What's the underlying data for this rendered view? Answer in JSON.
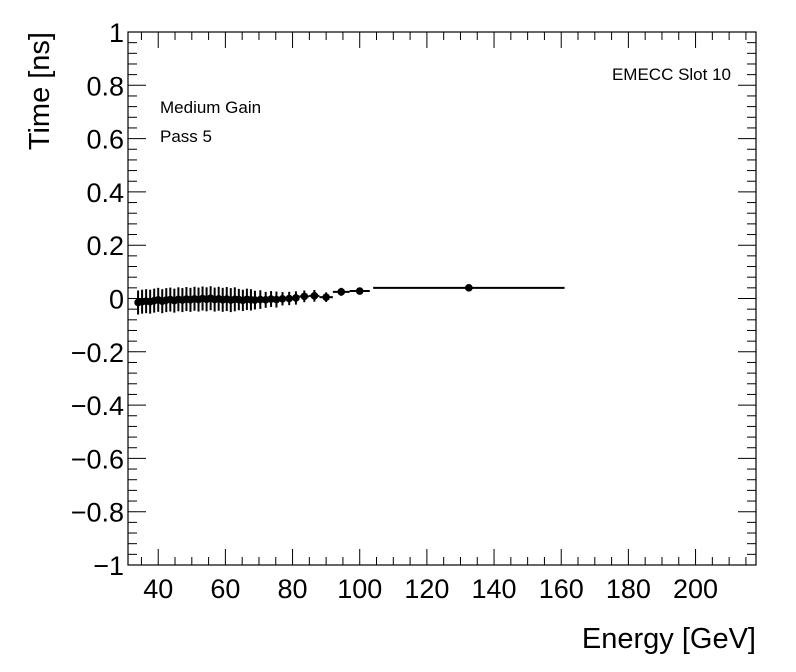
{
  "chart_data": {
    "type": "scatter",
    "xlabel": "Energy [GeV]",
    "ylabel": "Time [ns]",
    "xlim": [
      31,
      218
    ],
    "ylim": [
      -1,
      1
    ],
    "xticks": [
      40,
      60,
      80,
      100,
      120,
      140,
      160,
      180,
      200
    ],
    "xtick_labels": [
      "40",
      "60",
      "80",
      "100",
      "120",
      "140",
      "160",
      "180",
      "200"
    ],
    "yticks": [
      -1,
      -0.8,
      -0.6,
      -0.4,
      -0.2,
      0,
      0.2,
      0.4,
      0.6,
      0.8,
      1
    ],
    "ytick_labels": [
      "−1",
      "−0.8",
      "−0.6",
      "−0.4",
      "−0.2",
      "0",
      "0.2",
      "0.4",
      "0.6",
      "0.8",
      "1"
    ],
    "grid": false,
    "annotations": {
      "top_right": "EMECC Slot 10",
      "line1": "Medium Gain",
      "line2": "Pass 5"
    },
    "points": [
      {
        "x": 34.0,
        "y": -0.015,
        "xerr": 0.6,
        "yerr": 0.045
      },
      {
        "x": 35.2,
        "y": -0.012,
        "xerr": 0.6,
        "yerr": 0.045
      },
      {
        "x": 36.4,
        "y": -0.01,
        "xerr": 0.6,
        "yerr": 0.045
      },
      {
        "x": 37.6,
        "y": -0.012,
        "xerr": 0.6,
        "yerr": 0.045
      },
      {
        "x": 38.8,
        "y": -0.008,
        "xerr": 0.6,
        "yerr": 0.045
      },
      {
        "x": 40.0,
        "y": -0.005,
        "xerr": 0.6,
        "yerr": 0.045
      },
      {
        "x": 41.2,
        "y": -0.01,
        "xerr": 0.6,
        "yerr": 0.045
      },
      {
        "x": 42.4,
        "y": -0.006,
        "xerr": 0.6,
        "yerr": 0.045
      },
      {
        "x": 43.6,
        "y": -0.004,
        "xerr": 0.6,
        "yerr": 0.045
      },
      {
        "x": 44.8,
        "y": -0.008,
        "xerr": 0.6,
        "yerr": 0.045
      },
      {
        "x": 46.0,
        "y": -0.003,
        "xerr": 0.6,
        "yerr": 0.045
      },
      {
        "x": 47.2,
        "y": -0.006,
        "xerr": 0.6,
        "yerr": 0.045
      },
      {
        "x": 48.4,
        "y": -0.002,
        "xerr": 0.6,
        "yerr": 0.045
      },
      {
        "x": 49.6,
        "y": -0.005,
        "xerr": 0.6,
        "yerr": 0.045
      },
      {
        "x": 50.8,
        "y": -0.001,
        "xerr": 0.6,
        "yerr": 0.045
      },
      {
        "x": 52.0,
        "y": -0.004,
        "xerr": 0.6,
        "yerr": 0.045
      },
      {
        "x": 53.2,
        "y": 0.0,
        "xerr": 0.6,
        "yerr": 0.045
      },
      {
        "x": 54.4,
        "y": -0.003,
        "xerr": 0.6,
        "yerr": 0.045
      },
      {
        "x": 55.6,
        "y": 0.001,
        "xerr": 0.6,
        "yerr": 0.045
      },
      {
        "x": 56.8,
        "y": -0.004,
        "xerr": 0.6,
        "yerr": 0.045
      },
      {
        "x": 58.0,
        "y": -0.001,
        "xerr": 0.6,
        "yerr": 0.045
      },
      {
        "x": 59.2,
        "y": -0.005,
        "xerr": 0.6,
        "yerr": 0.045
      },
      {
        "x": 60.4,
        "y": -0.002,
        "xerr": 0.6,
        "yerr": 0.045
      },
      {
        "x": 61.6,
        "y": -0.006,
        "xerr": 0.6,
        "yerr": 0.045
      },
      {
        "x": 62.8,
        "y": -0.003,
        "xerr": 0.6,
        "yerr": 0.045
      },
      {
        "x": 64.0,
        "y": -0.004,
        "xerr": 0.6,
        "yerr": 0.04
      },
      {
        "x": 65.2,
        "y": -0.007,
        "xerr": 0.6,
        "yerr": 0.04
      },
      {
        "x": 66.4,
        "y": -0.003,
        "xerr": 0.6,
        "yerr": 0.04
      },
      {
        "x": 67.6,
        "y": -0.005,
        "xerr": 0.6,
        "yerr": 0.04
      },
      {
        "x": 68.8,
        "y": -0.006,
        "xerr": 0.6,
        "yerr": 0.035
      },
      {
        "x": 70.4,
        "y": -0.004,
        "xerr": 0.8,
        "yerr": 0.035
      },
      {
        "x": 72.0,
        "y": -0.005,
        "xerr": 0.8,
        "yerr": 0.03
      },
      {
        "x": 73.6,
        "y": -0.002,
        "xerr": 0.8,
        "yerr": 0.03
      },
      {
        "x": 75.2,
        "y": -0.004,
        "xerr": 0.8,
        "yerr": 0.03
      },
      {
        "x": 77.0,
        "y": -0.001,
        "xerr": 1.0,
        "yerr": 0.025
      },
      {
        "x": 79.0,
        "y": 0.0,
        "xerr": 1.0,
        "yerr": 0.025
      },
      {
        "x": 81.0,
        "y": 0.002,
        "xerr": 1.0,
        "yerr": 0.025
      },
      {
        "x": 83.5,
        "y": 0.008,
        "xerr": 1.5,
        "yerr": 0.022
      },
      {
        "x": 86.5,
        "y": 0.01,
        "xerr": 1.5,
        "yerr": 0.022
      },
      {
        "x": 90.0,
        "y": 0.005,
        "xerr": 2.0,
        "yerr": 0.018
      },
      {
        "x": 94.5,
        "y": 0.025,
        "xerr": 2.5,
        "yerr": 0.015
      },
      {
        "x": 100.0,
        "y": 0.028,
        "xerr": 3.0,
        "yerr": 0.012
      },
      {
        "x": 132.5,
        "y": 0.04,
        "xerr": 28.5,
        "yerr": 0.008
      }
    ]
  }
}
